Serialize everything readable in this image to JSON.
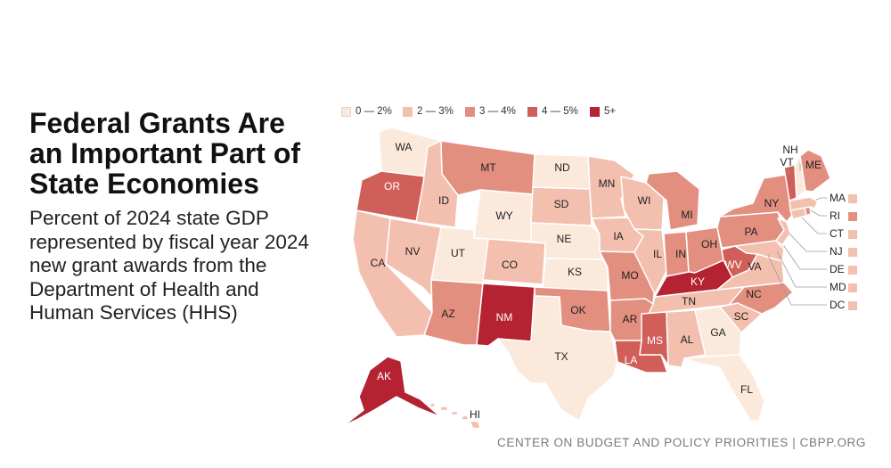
{
  "title": "Federal Grants Are an Important Part of State Economies",
  "subtitle": "Percent of 2024 state GDP represented by fiscal year 2024 new grant awards from the Department of Health and Human Services (HHS)",
  "source": "CENTER ON BUDGET AND POLICY PRIORITIES | CBPP.ORG",
  "colors": {
    "0-2": "#fbe9dc",
    "2-3": "#f3bfae",
    "3-4": "#e28f80",
    "4-5": "#d05f5a",
    "5+": "#b52231",
    "border": "#ffffff",
    "label_dark": "#222222",
    "label_light": "#ffffff"
  },
  "legend": [
    {
      "key": "0-2",
      "label": "0 — 2%"
    },
    {
      "key": "2-3",
      "label": "2 — 3%"
    },
    {
      "key": "3-4",
      "label": "3 — 4%"
    },
    {
      "key": "4-5",
      "label": "4 — 5%"
    },
    {
      "key": "5+",
      "label": "5+"
    }
  ],
  "states": {
    "WA": "0-2",
    "OR": "4-5",
    "CA": "2-3",
    "NV": "2-3",
    "ID": "2-3",
    "MT": "3-4",
    "WY": "0-2",
    "UT": "0-2",
    "CO": "2-3",
    "AZ": "3-4",
    "NM": "5+",
    "ND": "0-2",
    "SD": "2-3",
    "NE": "0-2",
    "KS": "0-2",
    "OK": "3-4",
    "TX": "0-2",
    "MN": "2-3",
    "IA": "2-3",
    "MO": "3-4",
    "AR": "3-4",
    "LA": "4-5",
    "WI": "2-3",
    "IL": "2-3",
    "MI": "3-4",
    "IN": "3-4",
    "OH": "3-4",
    "KY": "5+",
    "TN": "2-3",
    "MS": "4-5",
    "AL": "2-3",
    "GA": "0-2",
    "FL": "0-2",
    "SC": "2-3",
    "NC": "3-4",
    "VA": "2-3",
    "WV": "4-5",
    "PA": "3-4",
    "NY": "3-4",
    "VT": "4-5",
    "NH": "0-2",
    "ME": "3-4",
    "MA": "2-3",
    "RI": "3-4",
    "CT": "2-3",
    "NJ": "2-3",
    "DE": "2-3",
    "MD": "2-3",
    "DC": "2-3",
    "AK": "5+",
    "HI": "2-3"
  }
}
